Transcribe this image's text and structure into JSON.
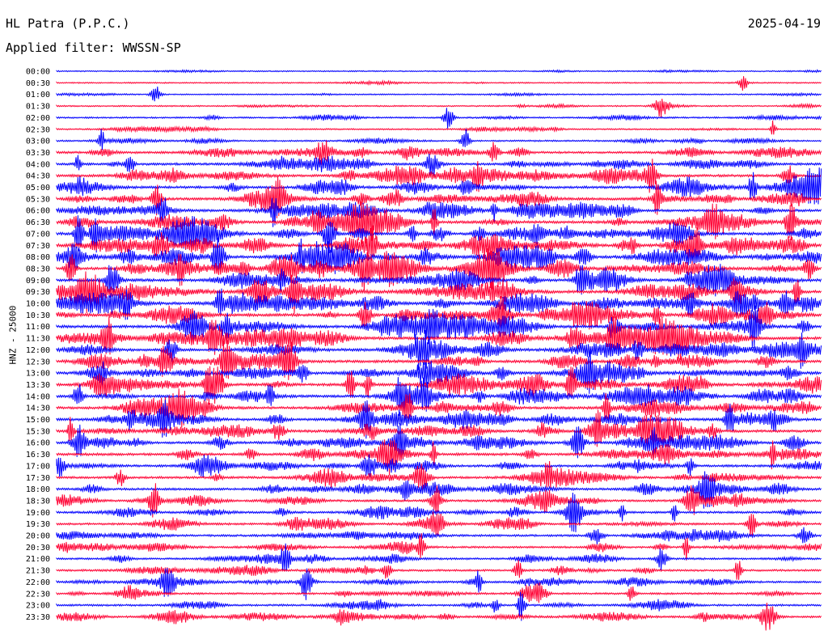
{
  "header": {
    "station": "HL Patra (P.P.C.)",
    "date": "2025-04-19",
    "filter": "Applied filter: WWSSN-SP"
  },
  "chart_data": {
    "type": "line",
    "title": "HL Patra (P.P.C.)",
    "subtitle": "Applied filter: WWSSN-SP",
    "ylabel": "HNZ - 25000",
    "xlabel": "",
    "trace_colors": [
      "#0000ff",
      "#ff0033"
    ],
    "grid": false,
    "row_labels": [
      "00:00",
      "00:30",
      "01:00",
      "01:30",
      "02:00",
      "02:30",
      "03:00",
      "03:30",
      "04:00",
      "04:30",
      "05:00",
      "05:30",
      "06:00",
      "06:30",
      "07:00",
      "07:30",
      "08:00",
      "08:30",
      "09:00",
      "09:30",
      "10:00",
      "10:30",
      "11:00",
      "11:30",
      "12:00",
      "12:30",
      "13:00",
      "13:30",
      "14:00",
      "14:30",
      "15:00",
      "15:30",
      "16:00",
      "16:30",
      "17:00",
      "17:30",
      "18:00",
      "18:30",
      "19:00",
      "19:30",
      "20:00",
      "20:30",
      "21:00",
      "21:30",
      "22:00",
      "22:30",
      "23:00",
      "23:30"
    ],
    "series": [
      {
        "values": [
          0.1,
          0.1,
          0.1,
          0.15,
          0.25,
          0.2,
          0.25,
          0.55,
          0.65,
          0.7,
          0.7,
          0.75,
          0.75,
          0.8,
          0.85,
          0.85,
          0.85,
          0.9,
          0.9,
          0.9,
          0.9,
          0.85,
          0.85,
          0.85,
          0.8,
          0.8,
          0.8,
          0.8,
          0.75,
          0.75,
          0.75,
          0.75,
          0.7,
          0.7,
          0.65,
          0.6,
          0.6,
          0.55,
          0.55,
          0.5,
          0.5,
          0.45,
          0.45,
          0.45,
          0.45,
          0.45,
          0.4,
          0.45
        ]
      }
    ]
  }
}
